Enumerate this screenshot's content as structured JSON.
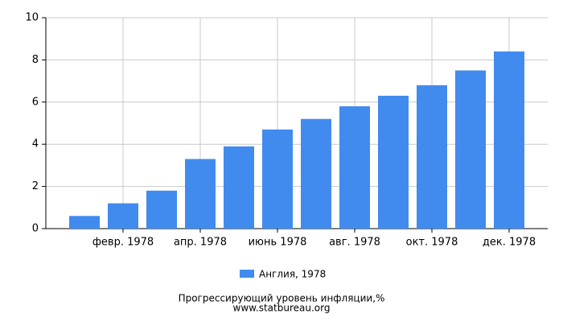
{
  "chart_data": {
    "type": "bar",
    "categories": [
      null,
      "февр. 1978",
      null,
      "апр. 1978",
      null,
      "июнь 1978",
      null,
      "авг. 1978",
      null,
      "окт. 1978",
      null,
      "дек. 1978"
    ],
    "series": [
      {
        "name": "Англия, 1978",
        "color": "#418bef",
        "values": [
          0.6,
          1.2,
          1.8,
          3.3,
          3.9,
          4.7,
          5.2,
          5.8,
          6.3,
          6.8,
          7.5,
          8.4
        ]
      }
    ],
    "ylim": [
      0,
      10
    ],
    "yticks": [
      0,
      2,
      4,
      6,
      8,
      10
    ],
    "grid": true,
    "caption": "Прогрессирующий уровень инфляции,%",
    "source": "www.statbureau.org"
  }
}
